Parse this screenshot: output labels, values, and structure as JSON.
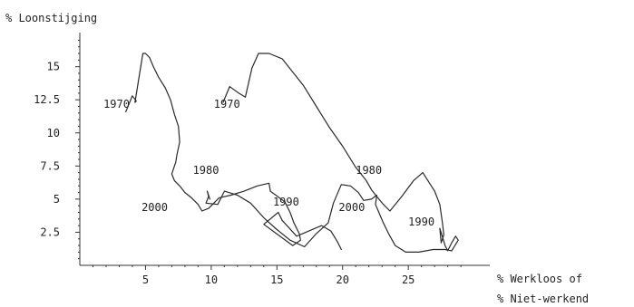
{
  "chart_data": {
    "type": "line",
    "title": "",
    "ylabel": "% Loonstijging",
    "xlabel_lines": [
      "% Werkloos of",
      "% Niet-werkend"
    ],
    "xlim": [
      0,
      31.2
    ],
    "ylim": [
      0,
      17.3
    ],
    "xticks": [
      5,
      10,
      15,
      20,
      25
    ],
    "xtick_labels": [
      "5",
      "10",
      "15",
      "20",
      "25"
    ],
    "yticks": [
      2.5,
      5,
      7.5,
      10,
      12.5,
      15
    ],
    "ytick_labels": [
      "2.5",
      "5",
      "7.5",
      "10",
      "12.5",
      "15"
    ],
    "grid": false,
    "legend": "none",
    "series": [
      {
        "x": [
          3.5,
          4.0,
          4.3,
          4.2,
          4.8,
          5.0,
          5.3,
          5.6,
          6.0,
          6.5,
          6.9,
          7.2,
          7.5,
          7.6,
          7.4,
          7.3,
          7.0,
          7.2,
          7.6,
          8.0,
          8.5,
          9.0,
          9.3,
          9.8,
          10.6,
          11.5,
          12.5,
          13.5,
          14.4,
          14.5,
          15.6,
          16.0,
          16.3,
          16.7,
          16.8,
          16.2,
          14.0,
          15.1,
          15.4,
          16.5,
          18.4,
          19.1,
          19.6,
          19.9
        ],
        "y": [
          11.6,
          12.8,
          12.4,
          12.3,
          16.0,
          16.0,
          15.7,
          15.0,
          14.2,
          13.4,
          12.5,
          11.4,
          10.5,
          9.3,
          8.4,
          7.8,
          6.9,
          6.4,
          6.0,
          5.5,
          5.1,
          4.6,
          4.1,
          4.3,
          5.1,
          5.3,
          5.6,
          6.0,
          6.2,
          5.6,
          4.8,
          4.0,
          3.2,
          2.4,
          1.9,
          1.5,
          3.1,
          4.0,
          3.4,
          2.2,
          3.0,
          2.6,
          1.8,
          1.2
        ]
      },
      {
        "x": [
          10.9,
          11.4,
          12.1,
          12.6,
          13.1,
          13.6,
          14.4,
          15.4,
          16.2,
          17.0,
          18.0,
          19.0,
          20.0,
          21.0,
          21.8,
          22.2,
          22.6,
          23.1,
          23.6,
          24.5,
          25.4,
          26.1,
          27.0,
          27.4,
          27.6,
          27.7,
          27.5,
          27.4,
          27.8,
          28.0,
          28.3,
          28.6,
          28.8,
          28.3,
          27.8,
          26.9,
          25.8,
          24.8,
          24.0,
          23.5,
          23.1,
          22.8,
          22.5,
          22.6,
          22.2,
          21.6,
          21.2,
          20.6,
          19.9,
          19.3,
          18.9,
          18.0,
          17.1,
          16.0,
          15.0,
          14.0,
          13.0,
          12.0,
          11.0,
          10.5,
          9.6,
          9.8,
          9.7,
          9.9
        ],
        "y": [
          12.3,
          13.5,
          13.0,
          12.7,
          14.9,
          16.0,
          16.0,
          15.6,
          14.6,
          13.6,
          12.0,
          10.4,
          9.0,
          7.4,
          6.4,
          5.7,
          5.2,
          4.6,
          4.1,
          5.2,
          6.4,
          7.0,
          5.6,
          4.6,
          3.2,
          2.3,
          1.7,
          2.8,
          1.5,
          1.1,
          1.7,
          2.2,
          1.9,
          1.1,
          1.2,
          1.2,
          1.0,
          1.0,
          1.5,
          2.4,
          3.2,
          3.9,
          4.6,
          5.3,
          5.0,
          4.9,
          5.5,
          6.0,
          6.1,
          4.7,
          3.2,
          2.4,
          1.4,
          1.9,
          2.7,
          3.6,
          4.7,
          5.3,
          5.6,
          4.6,
          4.7,
          5.2,
          5.6,
          5.0
        ]
      }
    ],
    "annotations": [
      {
        "text": "1970",
        "x": 1.8,
        "y": 11.9
      },
      {
        "text": "1980",
        "x": 8.6,
        "y": 6.9
      },
      {
        "text": "1990",
        "x": 14.7,
        "y": 4.5
      },
      {
        "text": "2000",
        "x": 4.7,
        "y": 4.1
      },
      {
        "text": "1970",
        "x": 10.2,
        "y": 11.9
      },
      {
        "text": "1980",
        "x": 21.0,
        "y": 6.9
      },
      {
        "text": "1990",
        "x": 25.0,
        "y": 3.0
      },
      {
        "text": "2000",
        "x": 19.7,
        "y": 4.1
      }
    ]
  }
}
